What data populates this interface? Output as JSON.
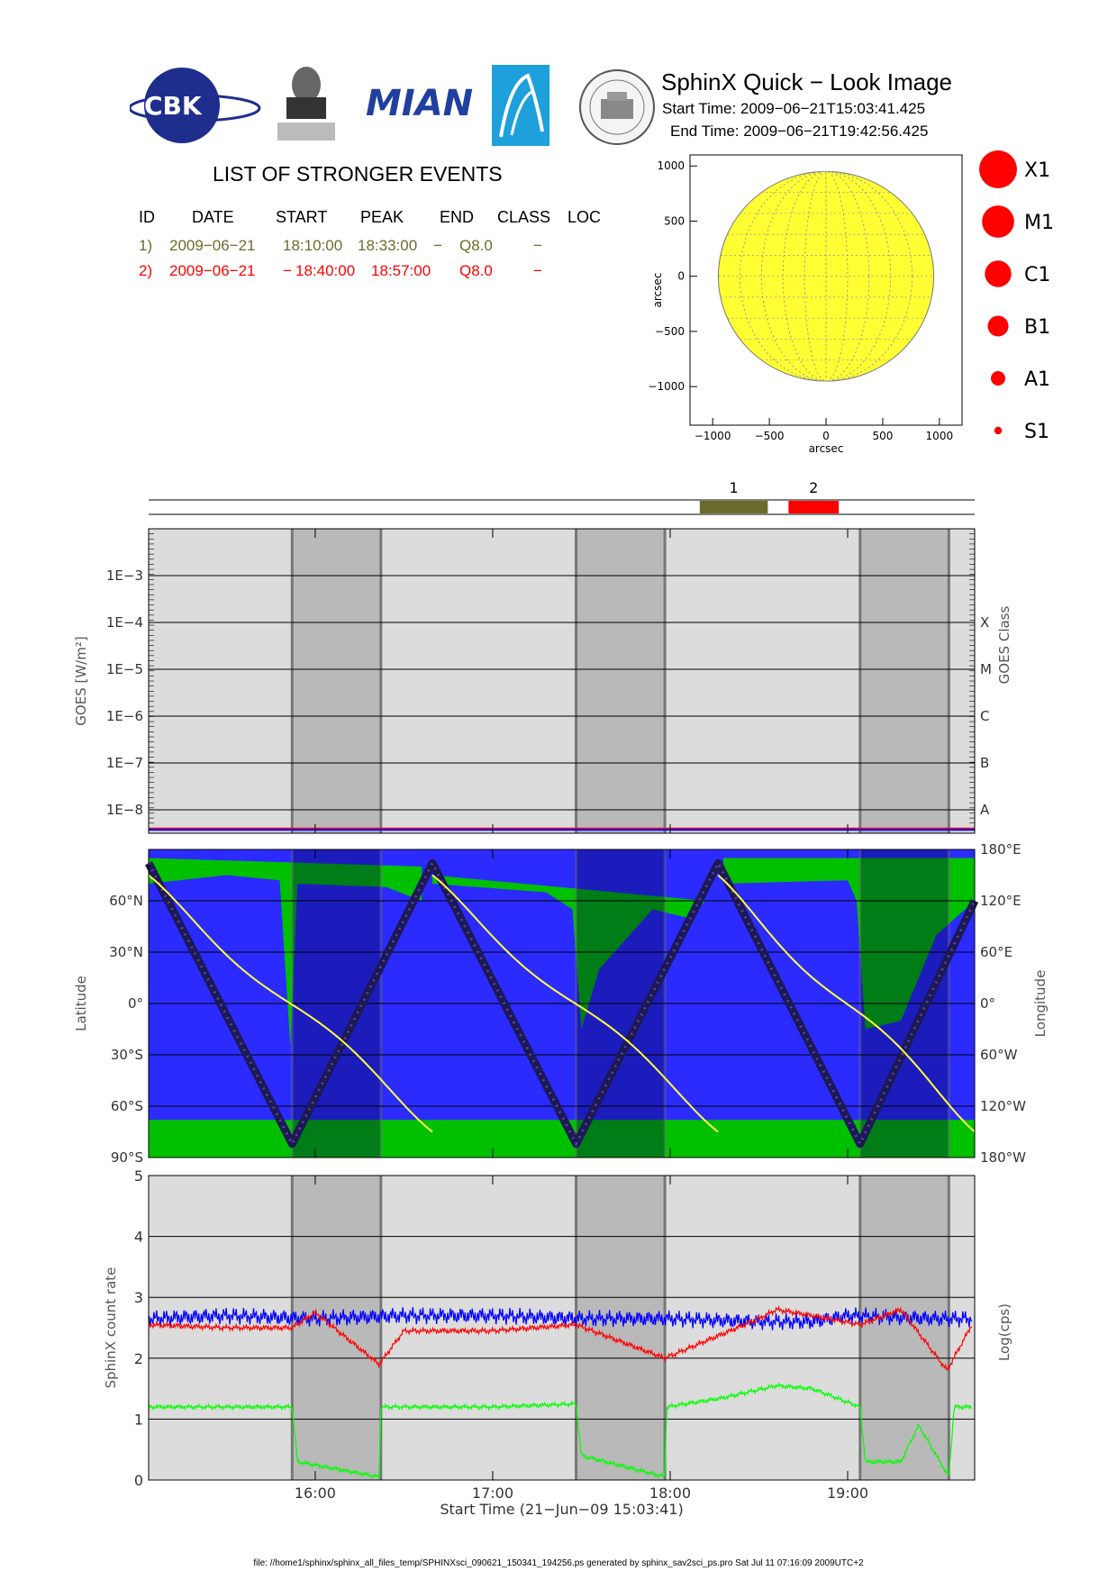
{
  "header": {
    "logos": [
      "CBK PAN",
      "P.N.Lebedev Physical Institute of the Russian Academy of Science",
      "MIAN",
      "observatory logo",
      "observatory seal"
    ],
    "title": "SphinX Quick − Look Image",
    "start_time": "Start Time: 2009−06−21T15:03:41.425",
    "end_time": "End Time: 2009−06−21T19:42:56.425"
  },
  "events": {
    "title": "LIST OF STRONGER EVENTS",
    "columns": [
      "ID",
      "DATE",
      "START",
      "PEAK",
      "END",
      "CLASS",
      "LOC"
    ],
    "rows": [
      {
        "color": "#6b6b2b",
        "cells": [
          "1)",
          "2009−06−21",
          "18:10:00",
          "18:33:00",
          "−",
          "Q8.0",
          "−"
        ]
      },
      {
        "color": "#ff0000",
        "cells": [
          "2)",
          "2009−06−21",
          "−",
          "18:40:00",
          "18:57:00",
          "Q8.0",
          "−"
        ]
      }
    ]
  },
  "colors": {
    "event1": "#6b6b2b",
    "event2": "#ff0000",
    "disk": "#ffff33",
    "eclipse_shade": "#b9b9b9",
    "day_bg": "#dcdcdc",
    "land": "#00c000",
    "ocean": "#2b2bff",
    "goes_long": "#ff0000",
    "goes_short": "#0000ff",
    "channel_red": "#ff0000",
    "channel_blue": "#0000ff",
    "channel_green": "#00ff00",
    "orbit_curve": "#ffff44"
  },
  "legend": {
    "classes": [
      {
        "label": "X1",
        "size": 1.0
      },
      {
        "label": "M1",
        "size": 0.85
      },
      {
        "label": "C1",
        "size": 0.7
      },
      {
        "label": "B1",
        "size": 0.55
      },
      {
        "label": "A1",
        "size": 0.38
      },
      {
        "label": "S1",
        "size": 0.2
      }
    ]
  },
  "solar_disk": {
    "xlabel": "arcsec",
    "ylabel": "arcsec",
    "xlim": [
      -1200,
      1200
    ],
    "ylim": [
      -1350,
      1100
    ],
    "radius": 950,
    "xticks": [
      -1000,
      -500,
      0,
      500,
      1000
    ],
    "yticks": [
      -1000,
      -500,
      0,
      500,
      1000
    ],
    "xtick_labels": [
      "−1000",
      "−500",
      "0",
      "500",
      "1000"
    ],
    "ytick_labels": [
      "−1000",
      "−500",
      "0",
      "500",
      "1000"
    ]
  },
  "event_bar": {
    "t_range": [
      15.0614,
      19.7156
    ],
    "markers": [
      {
        "label": "1",
        "start": 18.1667,
        "end": 18.55,
        "color": "#6b6b2b"
      },
      {
        "label": "2",
        "start": 18.6667,
        "end": 18.95,
        "color": "#ff0000"
      }
    ]
  },
  "time_axis": {
    "tlim": [
      15.0614,
      19.7156
    ],
    "ticks": [
      16,
      17,
      18,
      19
    ],
    "tick_labels": [
      "16:00",
      "17:00",
      "18:00",
      "19:00"
    ],
    "xlabel": "Start Time (21−Jun−09 15:03:41)",
    "eclipses": [
      [
        15.87,
        16.37
      ],
      [
        17.47,
        17.97
      ],
      [
        19.07,
        19.57
      ]
    ]
  },
  "chart_data": [
    {
      "type": "line",
      "panel": "goes",
      "ylabel": "GOES [W/m²]",
      "ylabel_right": "GOES Class",
      "ylim_log10": [
        -8.5,
        -2.0
      ],
      "yticks": [
        "1E−3",
        "1E−4",
        "1E−5",
        "1E−6",
        "1E−7",
        "1E−8"
      ],
      "yticks_log10": [
        -3,
        -4,
        -5,
        -6,
        -7,
        -8
      ],
      "right_labels": [
        "X",
        "M",
        "C",
        "B",
        "A"
      ],
      "right_label_log10": [
        -4,
        -5,
        -6,
        -7,
        -8
      ],
      "series": [
        {
          "name": "",
          "value": "4E−9",
          "log10": -8.4,
          "color": "#ff0000"
        },
        {
          "name": "",
          "value": "4E−9",
          "log10": -8.4,
          "color": "#0000ff"
        }
      ]
    },
    {
      "type": "line",
      "panel": "map",
      "ylabel": "Latitude",
      "ylabel_right": "Longitude",
      "ylim": [
        -90,
        90
      ],
      "yticks": [
        -90,
        -60,
        -30,
        0,
        30,
        60
      ],
      "ytick_labels": [
        "90°S",
        "60°S",
        "30°S",
        "0°",
        "30°N",
        "60°N"
      ],
      "right_ticks": [
        -180,
        -120,
        -60,
        0,
        60,
        120,
        180
      ],
      "right_tick_labels": [
        "180°W",
        "120°W",
        "60°W",
        "0°",
        "60°E",
        "120°E",
        "180°E"
      ],
      "latitude_track": {
        "t": [
          15.0614,
          15.87,
          16.66,
          17.47,
          18.27,
          19.07,
          19.7156
        ],
        "lat": [
          82,
          -82,
          82,
          -82,
          82,
          -82,
          60
        ]
      }
    },
    {
      "type": "line",
      "panel": "counts",
      "ylabel": "SphinX count rate",
      "ylabel_right": "Log(cps)",
      "ylim": [
        0,
        5
      ],
      "yticks": [
        0,
        1,
        2,
        3,
        4,
        5
      ],
      "series": [
        {
          "name": "",
          "color": "#0000ff",
          "t": [
            15.06,
            15.5,
            16.0,
            16.5,
            17.0,
            17.5,
            18.0,
            18.5,
            18.8,
            19.0,
            19.5,
            19.7
          ],
          "y": [
            2.65,
            2.7,
            2.65,
            2.7,
            2.7,
            2.65,
            2.65,
            2.6,
            2.6,
            2.7,
            2.65,
            2.65
          ]
        },
        {
          "name": "",
          "color": "#ff0000",
          "t": [
            15.06,
            15.5,
            15.87,
            16.0,
            16.36,
            16.5,
            17.0,
            17.47,
            17.97,
            18.5,
            18.6,
            18.8,
            19.07,
            19.3,
            19.56,
            19.7
          ],
          "y": [
            2.55,
            2.5,
            2.5,
            2.75,
            1.9,
            2.45,
            2.45,
            2.55,
            2.0,
            2.65,
            2.8,
            2.7,
            2.55,
            2.8,
            1.8,
            2.55
          ]
        },
        {
          "name": "",
          "color": "#00ff00",
          "t": [
            15.06,
            15.5,
            15.87,
            15.9,
            16.36,
            16.37,
            17.0,
            17.47,
            17.5,
            17.97,
            17.98,
            18.3,
            18.6,
            18.8,
            19.07,
            19.1,
            19.3,
            19.4,
            19.57,
            19.6,
            19.7
          ],
          "y": [
            1.2,
            1.2,
            1.2,
            0.3,
            0.05,
            1.2,
            1.2,
            1.25,
            0.4,
            0.05,
            1.2,
            1.35,
            1.55,
            1.5,
            1.2,
            0.3,
            0.3,
            0.9,
            0.05,
            1.2,
            1.2
          ]
        }
      ]
    }
  ],
  "footer": "file: //home1/sphinx/sphinx_all_files_temp/SPHINXsci_090621_150341_194256.ps generated by sphinx_sav2sci_ps.pro Sat Jul 11 07:16:09 2009UTC+2"
}
